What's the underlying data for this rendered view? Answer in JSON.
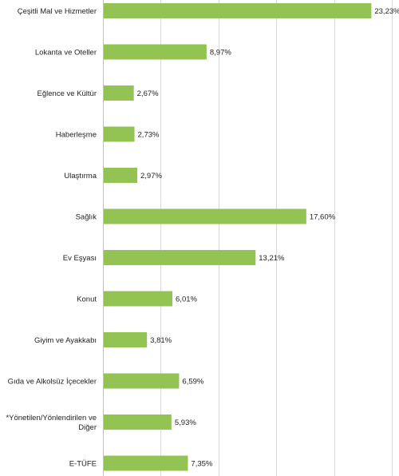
{
  "chart_data": {
    "type": "bar",
    "orientation": "horizontal",
    "categories": [
      "Çeşitli Mal ve Hizmetler",
      "Lokanta ve Oteller",
      "Eğlence ve Kültür",
      "Haberleşme",
      "Ulaştırma",
      "Sağlık",
      "Ev Eşyası",
      "Konut",
      "Giyim ve Ayakkabı",
      "Gıda ve Alkolsüz İçecekler",
      "*Yönetilen/Yönlendirilen ve Diğer",
      "E-TÜFE"
    ],
    "category_lines": [
      [
        "Çeşitli Mal ve Hizmetler"
      ],
      [
        "Lokanta ve Oteller"
      ],
      [
        "Eğlence ve Kültür"
      ],
      [
        "Haberleşme"
      ],
      [
        "Ulaştırma"
      ],
      [
        "Sağlık"
      ],
      [
        "Ev Eşyası"
      ],
      [
        "Konut"
      ],
      [
        "Giyim ve Ayakkabı"
      ],
      [
        "Gıda ve Alkolsüz İçecekler"
      ],
      [
        "*Yönetilen/Yönlendirilen ve",
        "Diğer"
      ],
      [
        "E-TÜFE"
      ]
    ],
    "values": [
      23.23,
      8.97,
      2.67,
      2.73,
      2.97,
      17.6,
      13.21,
      6.01,
      3.81,
      6.59,
      5.93,
      7.35
    ],
    "value_labels": [
      "23,23%",
      "8,97%",
      "2,67%",
      "2,73%",
      "2,97%",
      "17,60%",
      "13,21%",
      "6,01%",
      "3,81%",
      "6,59%",
      "5,93%",
      "7,35%"
    ],
    "xlim": [
      0,
      25
    ],
    "grid": true,
    "legend": "none",
    "colors": {
      "bar": "#92c353",
      "grid": "#d9d9d9",
      "axis": "#bfbfbf",
      "text": "#222222"
    }
  }
}
